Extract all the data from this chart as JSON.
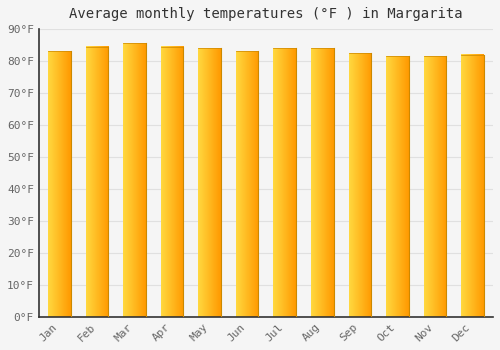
{
  "months": [
    "Jan",
    "Feb",
    "Mar",
    "Apr",
    "May",
    "Jun",
    "Jul",
    "Aug",
    "Sep",
    "Oct",
    "Nov",
    "Dec"
  ],
  "values": [
    83,
    84.5,
    85.5,
    84.5,
    84,
    83,
    84,
    84,
    82.5,
    81.5,
    81.5,
    82
  ],
  "bar_color_left": "#FFD055",
  "bar_color_right": "#FFA500",
  "bar_edge_color": "#CC8800",
  "title": "Average monthly temperatures (°F ) in Margarita",
  "ylim": [
    0,
    90
  ],
  "yticks": [
    0,
    10,
    20,
    30,
    40,
    50,
    60,
    70,
    80,
    90
  ],
  "ytick_labels": [
    "0°F",
    "10°F",
    "20°F",
    "30°F",
    "40°F",
    "50°F",
    "60°F",
    "70°F",
    "80°F",
    "90°F"
  ],
  "bg_color": "#f5f5f5",
  "grid_color": "#e0e0e0",
  "title_fontsize": 10,
  "tick_fontsize": 8,
  "bar_width": 0.6,
  "left_spine_color": "#333333",
  "bottom_spine_color": "#333333"
}
